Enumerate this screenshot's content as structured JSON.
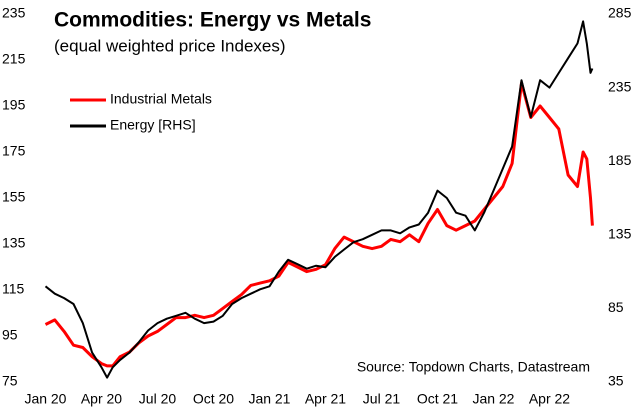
{
  "chart_data": {
    "type": "line",
    "title": "Commodities: Energy vs Metals",
    "subtitle": "(equal weighted price Indexes)",
    "annotation": "Source: Topdown Charts, Datastream",
    "grid": false,
    "legend": "upper left",
    "x": [
      0,
      0.5,
      1,
      1.5,
      2,
      2.5,
      3,
      3.3,
      3.6,
      4,
      4.5,
      5,
      5.5,
      6,
      6.5,
      7,
      7.5,
      8,
      8.5,
      9,
      9.5,
      10,
      10.5,
      11,
      11.5,
      12,
      12.5,
      13,
      13.5,
      14,
      14.5,
      15,
      15.5,
      16,
      16.5,
      17,
      17.5,
      18,
      18.5,
      19,
      19.5,
      20,
      20.5,
      21,
      21.5,
      22,
      22.5,
      23,
      23.5,
      24,
      24.5,
      25,
      25.5,
      26,
      26.5,
      27,
      27.5,
      28,
      28.5,
      28.8,
      29,
      29.2,
      29.3
    ],
    "xlim": [
      -0.4,
      29.6
    ],
    "xticks": [
      {
        "value": 0,
        "label": "Jan 20"
      },
      {
        "value": 3,
        "label": "Apr 20"
      },
      {
        "value": 6,
        "label": "Jul 20"
      },
      {
        "value": 9,
        "label": "Oct 20"
      },
      {
        "value": 12,
        "label": "Jan 21"
      },
      {
        "value": 15,
        "label": "Apr 21"
      },
      {
        "value": 18,
        "label": "Jul 21"
      },
      {
        "value": 21,
        "label": "Oct 21"
      },
      {
        "value": 24,
        "label": "Jan 22"
      },
      {
        "value": 27,
        "label": "Apr 22"
      }
    ],
    "ylim": [
      75,
      235
    ],
    "yticks": [
      75,
      95,
      115,
      135,
      155,
      175,
      195,
      215,
      235
    ],
    "y2lim": [
      35,
      285
    ],
    "y2ticks": [
      35,
      85,
      135,
      185,
      235,
      285
    ],
    "series": [
      {
        "name": "Industrial Metals",
        "color": "#ff0000",
        "axis": "y",
        "values": [
          100,
          102,
          97,
          91,
          90,
          86,
          83,
          82,
          82,
          86,
          88,
          92,
          95,
          97,
          100,
          103,
          103,
          104,
          103,
          104,
          107,
          110,
          113,
          117,
          118,
          119,
          121,
          127,
          125,
          123,
          124,
          126,
          133,
          138,
          136,
          134,
          133,
          134,
          137,
          136,
          139,
          136,
          144,
          150,
          143,
          141,
          143,
          145,
          150,
          155,
          160,
          170,
          205,
          190,
          195,
          190,
          185,
          165,
          160,
          175,
          172,
          155,
          143
        ]
      },
      {
        "name": "Energy [RHS]",
        "color": "#000000",
        "axis": "y2",
        "values": [
          100,
          95,
          92,
          88,
          75,
          55,
          45,
          38,
          45,
          50,
          55,
          62,
          70,
          75,
          78,
          80,
          82,
          78,
          75,
          76,
          80,
          88,
          92,
          95,
          98,
          100,
          110,
          118,
          115,
          112,
          114,
          113,
          120,
          125,
          130,
          132,
          135,
          138,
          138,
          136,
          140,
          142,
          150,
          165,
          160,
          150,
          148,
          138,
          150,
          165,
          180,
          195,
          240,
          215,
          240,
          235,
          245,
          255,
          265,
          280,
          265,
          245,
          248
        ]
      }
    ]
  }
}
